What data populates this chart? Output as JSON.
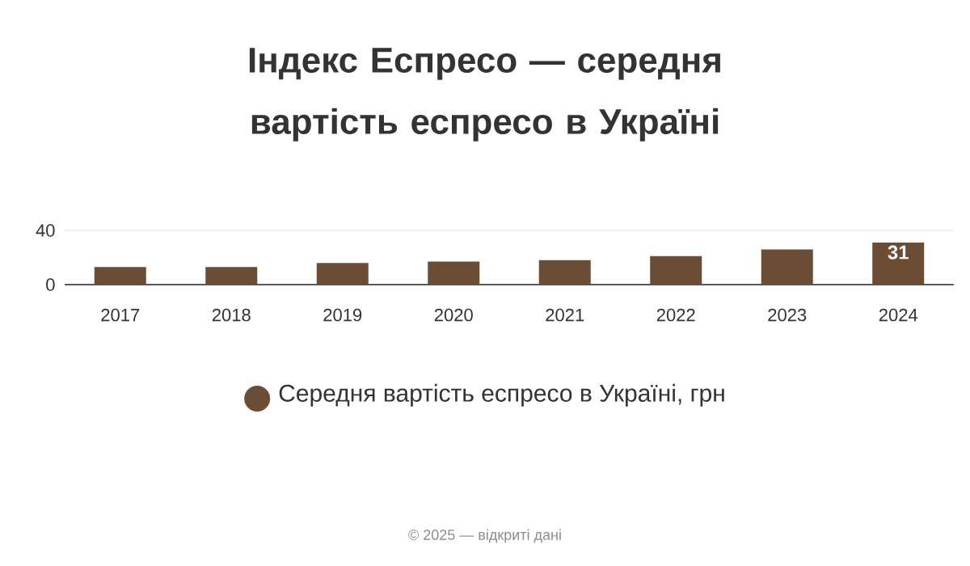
{
  "chart_data": {
    "type": "bar",
    "title": "Індекс Еспресо — середня вартість еспресо в Україні",
    "categories": [
      "2017",
      "2018",
      "2019",
      "2020",
      "2021",
      "2022",
      "2023",
      "2024"
    ],
    "series": [
      {
        "name": "Середня вартість еспресо в Україні, грн",
        "color": "#6b4c35",
        "values": [
          13,
          13,
          16,
          17,
          18,
          21,
          26,
          31
        ],
        "value_labels": [
          null,
          null,
          null,
          null,
          null,
          null,
          null,
          "31"
        ]
      }
    ],
    "ylim": [
      0,
      40
    ],
    "yticks": [
      0,
      40
    ],
    "grid": "y",
    "legend": "bottom",
    "annotations": [
      "© 2025 — відкриті дані"
    ]
  }
}
